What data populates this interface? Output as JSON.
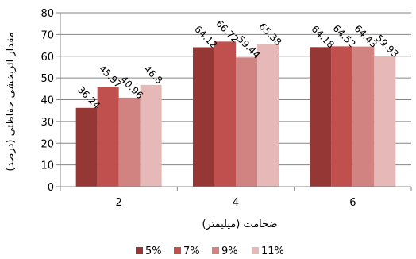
{
  "chart_data": {
    "type": "bar",
    "categories": [
      "2",
      "4",
      "6"
    ],
    "series": [
      {
        "name": "5%",
        "values": [
          36.24,
          64.12,
          64.18
        ],
        "color": "#953735"
      },
      {
        "name": "7%",
        "values": [
          45.97,
          66.72,
          64.52
        ],
        "color": "#c0504d"
      },
      {
        "name": "9%",
        "values": [
          40.96,
          59.44,
          64.43
        ],
        "color": "#d08381"
      },
      {
        "name": "11%",
        "values": [
          46.8,
          65.38,
          59.93
        ],
        "color": "#e6b9b8"
      }
    ],
    "data_labels": [
      [
        "36.24",
        "64.12",
        "64.18"
      ],
      [
        "45.97",
        "66.72",
        "64.52"
      ],
      [
        "40.96",
        "59.44",
        "64.43"
      ],
      [
        "46.8",
        "65.38",
        "59.93"
      ]
    ],
    "xlabel": "ضخامت (میلیمتر)",
    "ylabel": "مقدار اثربخشی حفاظتی (درصد)",
    "ylim": [
      0,
      80
    ],
    "yticks": [
      "0",
      "10",
      "20",
      "30",
      "40",
      "50",
      "60",
      "70",
      "80"
    ],
    "grid": true,
    "legend_position": "bottom"
  }
}
